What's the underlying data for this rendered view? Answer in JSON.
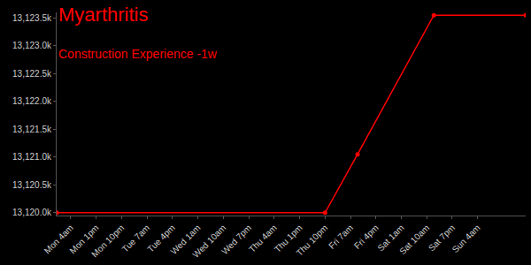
{
  "chart_data": {
    "type": "line",
    "title": "Myarthritis",
    "subtitle": "Construction Experience -1w",
    "color": "#ff0000",
    "marker": "circle",
    "x": [
      -5,
      90,
      101.5,
      128.5,
      161
    ],
    "values": [
      13120.0,
      13120.0,
      13121.05,
      13123.55,
      13123.55
    ],
    "xlim": [
      -5,
      161
    ],
    "xticks": [
      {
        "value": 0,
        "label": "Mon 4am"
      },
      {
        "value": 9,
        "label": "Mon 1pm"
      },
      {
        "value": 18,
        "label": "Mon 10pm"
      },
      {
        "value": 27,
        "label": "Tue 7am"
      },
      {
        "value": 36,
        "label": "Tue 4pm"
      },
      {
        "value": 45,
        "label": "Wed 1am"
      },
      {
        "value": 54,
        "label": "Wed 10am"
      },
      {
        "value": 63,
        "label": "Wed 7pm"
      },
      {
        "value": 72,
        "label": "Thu 4am"
      },
      {
        "value": 81,
        "label": "Thu 1pm"
      },
      {
        "value": 90,
        "label": "Thu 10pm"
      },
      {
        "value": 99,
        "label": "Fri 7am"
      },
      {
        "value": 108,
        "label": "Fri 4pm"
      },
      {
        "value": 117,
        "label": "Sat 1am"
      },
      {
        "value": 126,
        "label": "Sat 10am"
      },
      {
        "value": 135,
        "label": "Sat 7pm"
      },
      {
        "value": 144,
        "label": "Sun 4am"
      }
    ],
    "ylim": [
      13119.95,
      13123.6
    ],
    "yticks": [
      {
        "value": 13120.0,
        "label": "13,120.0k"
      },
      {
        "value": 13120.5,
        "label": "13,120.5k"
      },
      {
        "value": 13121.0,
        "label": "13,121.0k"
      },
      {
        "value": 13121.5,
        "label": "13,121.5k"
      },
      {
        "value": 13122.0,
        "label": "13,122.0k"
      },
      {
        "value": 13122.5,
        "label": "13,122.5k"
      },
      {
        "value": 13123.0,
        "label": "13,123.0k"
      },
      {
        "value": 13123.5,
        "label": "13,123.5k"
      }
    ],
    "grid": false
  }
}
